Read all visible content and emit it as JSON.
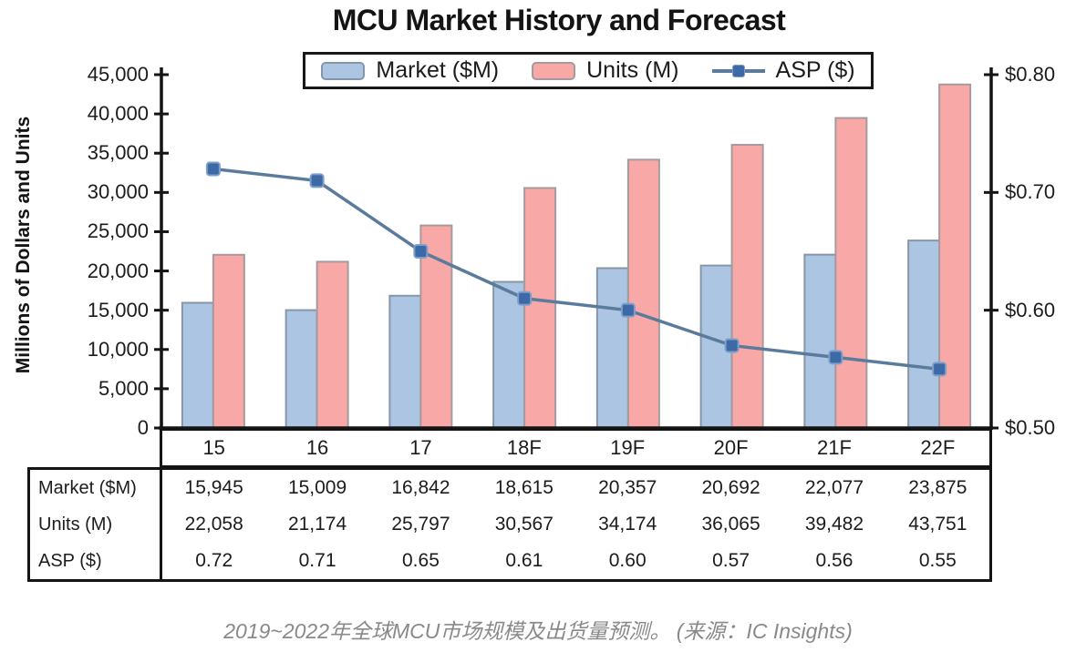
{
  "title": "MCU Market History and Forecast",
  "caption": "2019~2022年全球MCU市场规模及出货量预测。  (来源：IC Insights)",
  "colors": {
    "market_fill": "#abc5e3",
    "market_border": "#8796a6",
    "units_fill": "#f9a8a8",
    "units_border": "#a59b9d",
    "asp_line": "#5b7b9c",
    "asp_marker": "#3d69a7",
    "asp_marker_halo": "#7d9fca",
    "axis": "#141414",
    "text": "#1c1c1c",
    "caption_text": "#898989"
  },
  "chart_data": {
    "type": "bar+line",
    "title": "MCU Market History and Forecast",
    "categories": [
      "15",
      "16",
      "17",
      "18F",
      "19F",
      "20F",
      "21F",
      "22F"
    ],
    "series": [
      {
        "name": "Market ($M)",
        "type": "bar",
        "axis": "left",
        "values": [
          15945,
          15009,
          16842,
          18615,
          20357,
          20692,
          22077,
          23875
        ]
      },
      {
        "name": "Units (M)",
        "type": "bar",
        "axis": "left",
        "values": [
          22058,
          21174,
          25797,
          30567,
          34174,
          36065,
          39482,
          43751
        ]
      },
      {
        "name": "ASP ($)",
        "type": "line",
        "axis": "right",
        "values": [
          0.72,
          0.71,
          0.65,
          0.61,
          0.6,
          0.57,
          0.56,
          0.55
        ]
      }
    ],
    "left_axis": {
      "label": "Millions of Dollars and Units",
      "min": 0,
      "max": 45000,
      "step": 5000,
      "tick_labels": [
        "45,000",
        "40,000",
        "35,000",
        "30,000",
        "25,000",
        "20,000",
        "15,000",
        "10,000",
        "5,000",
        "0"
      ]
    },
    "right_axis": {
      "min": 0.5,
      "max": 0.8,
      "step": 0.1,
      "tick_labels": [
        "$0.80",
        "$0.70",
        "$0.60",
        "$0.50"
      ]
    },
    "legend_position": "top",
    "grid": false
  },
  "table": {
    "rows": [
      {
        "label": "Market ($M)",
        "values": [
          "15,945",
          "15,009",
          "16,842",
          "18,615",
          "20,357",
          "20,692",
          "22,077",
          "23,875"
        ]
      },
      {
        "label": "Units (M)",
        "values": [
          "22,058",
          "21,174",
          "25,797",
          "30,567",
          "34,174",
          "36,065",
          "39,482",
          "43,751"
        ]
      },
      {
        "label": "ASP ($)",
        "values": [
          "0.72",
          "0.71",
          "0.65",
          "0.61",
          "0.60",
          "0.57",
          "0.56",
          "0.55"
        ]
      }
    ]
  }
}
